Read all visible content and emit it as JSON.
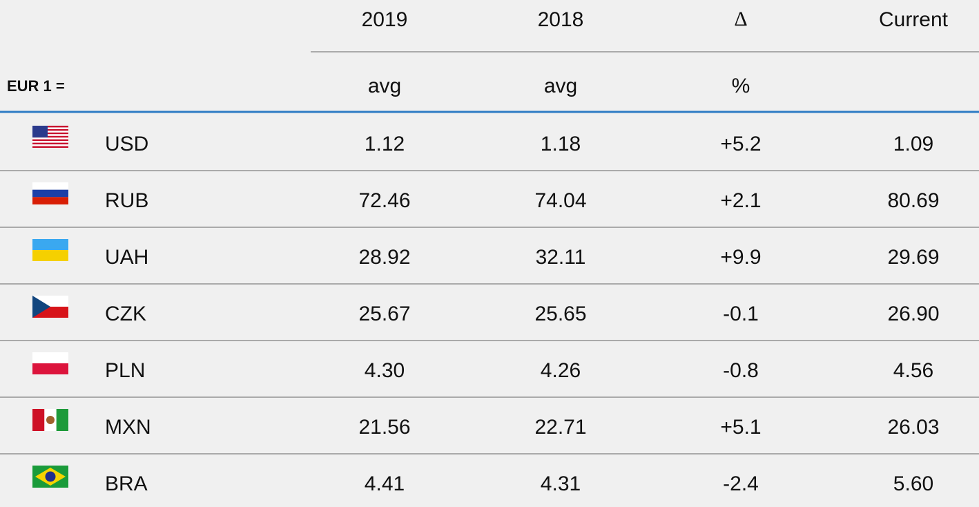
{
  "header": {
    "base": "EUR 1 =",
    "columns": [
      "2019",
      "2018",
      "Δ",
      "Current"
    ],
    "units": [
      "avg",
      "avg",
      "%"
    ]
  },
  "rows": [
    {
      "code": "USD",
      "values": [
        "1.12",
        "1.18",
        "+5.2",
        "1.09"
      ]
    },
    {
      "code": "RUB",
      "values": [
        "72.46",
        "74.04",
        "+2.1",
        "80.69"
      ]
    },
    {
      "code": "UAH",
      "values": [
        "28.92",
        "32.11",
        "+9.9",
        "29.69"
      ]
    },
    {
      "code": "CZK",
      "values": [
        "25.67",
        "25.65",
        "-0.1",
        "26.90"
      ]
    },
    {
      "code": "PLN",
      "values": [
        "4.30",
        "4.26",
        "-0.8",
        "4.56"
      ]
    },
    {
      "code": "MXN",
      "values": [
        "21.56",
        "22.71",
        "+5.1",
        "26.03"
      ]
    },
    {
      "code": "BRA",
      "values": [
        "4.41",
        "4.31",
        "-2.4",
        "5.60"
      ]
    }
  ]
}
